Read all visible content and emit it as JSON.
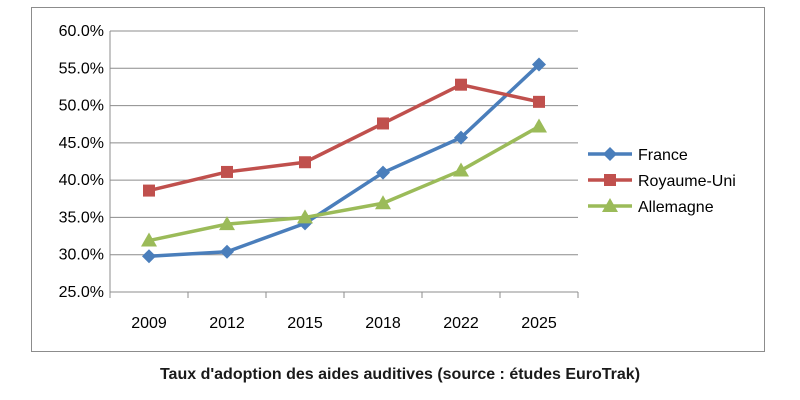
{
  "chart_data": {
    "type": "line",
    "title": "",
    "caption": "Taux d'adoption des aides auditives (source : études EuroTrak)",
    "xlabel": "",
    "ylabel": "",
    "categories": [
      "2009",
      "2012",
      "2015",
      "2018",
      "2022",
      "2025"
    ],
    "ylim": [
      25,
      60
    ],
    "y_ticks": [
      {
        "value": 25,
        "label": "25.0%"
      },
      {
        "value": 30,
        "label": "30.0%"
      },
      {
        "value": 35,
        "label": "35.0%"
      },
      {
        "value": 40,
        "label": "40.0%"
      },
      {
        "value": 45,
        "label": "45.0%"
      },
      {
        "value": 50,
        "label": "50.0%"
      },
      {
        "value": 55,
        "label": "55.0%"
      },
      {
        "value": 60,
        "label": "60.0%"
      }
    ],
    "grid": true,
    "legend_position": "right",
    "series": [
      {
        "name": "France",
        "color": "#4a7ebb",
        "marker": "diamond",
        "values": [
          29.8,
          30.4,
          34.2,
          41.0,
          45.7,
          55.5
        ]
      },
      {
        "name": "Royaume-Uni",
        "color": "#c0504d",
        "marker": "square",
        "values": [
          38.6,
          41.1,
          42.4,
          47.6,
          52.8,
          50.5
        ]
      },
      {
        "name": "Allemagne",
        "color": "#9bbb59",
        "marker": "triangle",
        "values": [
          31.9,
          34.1,
          35.0,
          36.9,
          41.3,
          47.2
        ]
      }
    ]
  }
}
